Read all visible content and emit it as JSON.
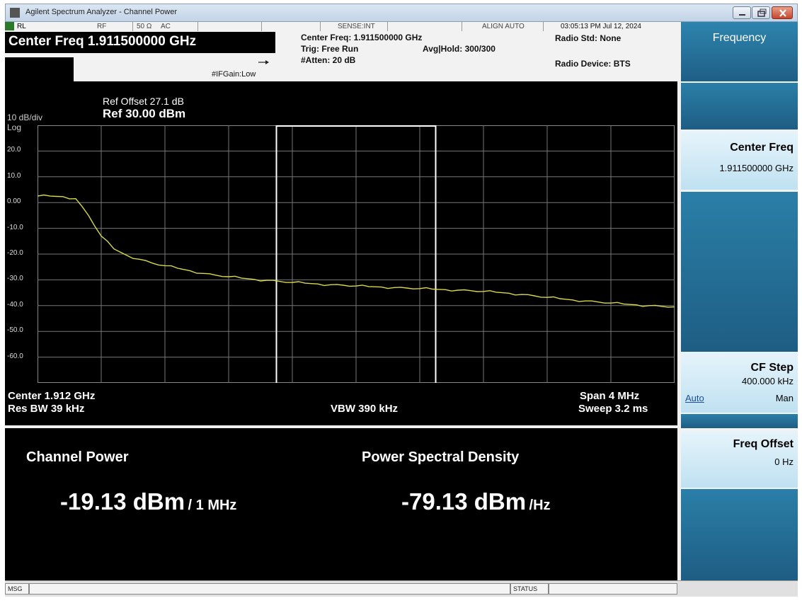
{
  "window": {
    "title": "Agilent Spectrum Analyzer - Channel Power"
  },
  "header": {
    "status_items": [
      "RL",
      "RF",
      "50 Ω",
      "AC",
      "SENSE:INT",
      "ALIGN AUTO"
    ],
    "timestamp": "03:05:13 PM Jul 12, 2024",
    "center_freq": "Center Freq 1.911500000 GHz",
    "ifgain": "#IFGain:Low",
    "info_center": "Center Freq: 1.911500000 GHz",
    "trig": "Trig: Free Run",
    "avg_hold": "Avg|Hold: 300/300",
    "atten": "#Atten: 20 dB",
    "radio_std": "Radio Std: None",
    "radio_device": "Radio Device: BTS"
  },
  "graph": {
    "ref_offset": "Ref Offset 27.1 dB",
    "ref_level": "Ref 30.00 dBm",
    "scale": "10 dB/div",
    "scale_type": "Log",
    "y_ticks": [
      "20.0",
      "10.0",
      "0.00",
      "-10.0",
      "-20.0",
      "-30.0",
      "-40.0",
      "-50.0",
      "-60.0"
    ],
    "center": "Center  1.912 GHz",
    "span": "Span 4 MHz",
    "res_bw": "Res BW  39 kHz",
    "vbw": "VBW  390 kHz",
    "sweep": "Sweep  3.2 ms",
    "trace_color": "#d8d84a",
    "trace_dbm": [
      2.5,
      2.5,
      2.3,
      1.5,
      -5,
      -13,
      -18,
      -20.5,
      -22,
      -23.5,
      -24.5,
      -25.5,
      -26.5,
      -27.5,
      -28.2,
      -28.8,
      -29.3,
      -29.8,
      -30.2,
      -30.6,
      -31.0,
      -31.3,
      -31.6,
      -31.9,
      -32.1,
      -32.4,
      -32.6,
      -32.8,
      -33.0,
      -33.2,
      -33.4,
      -33.6,
      -33.8,
      -34.0,
      -34.2,
      -34.5,
      -34.8,
      -35.2,
      -35.7,
      -36.2,
      -36.8,
      -37.3,
      -37.8,
      -38.2,
      -38.6,
      -39.0,
      -39.4,
      -39.7,
      -40.0,
      -40.3,
      -40.5
    ]
  },
  "measurement": {
    "channel_power_title": "Channel Power",
    "channel_power_value": "-19.13 dBm",
    "channel_power_unit": "/ 1 MHz",
    "psd_title": "Power Spectral Density",
    "psd_value": "-79.13 dBm",
    "psd_unit": "/Hz"
  },
  "softkeys": {
    "menu_title": "Frequency",
    "center_freq_label": "Center Freq",
    "center_freq_value": "1.911500000 GHz",
    "cf_step_label": "CF Step",
    "cf_step_value": "400.000 kHz",
    "cf_step_auto": "Auto",
    "cf_step_man": "Man",
    "freq_offset_label": "Freq Offset",
    "freq_offset_value": "0 Hz"
  },
  "statusbar": {
    "msg": "MSG",
    "status": "STATUS"
  }
}
